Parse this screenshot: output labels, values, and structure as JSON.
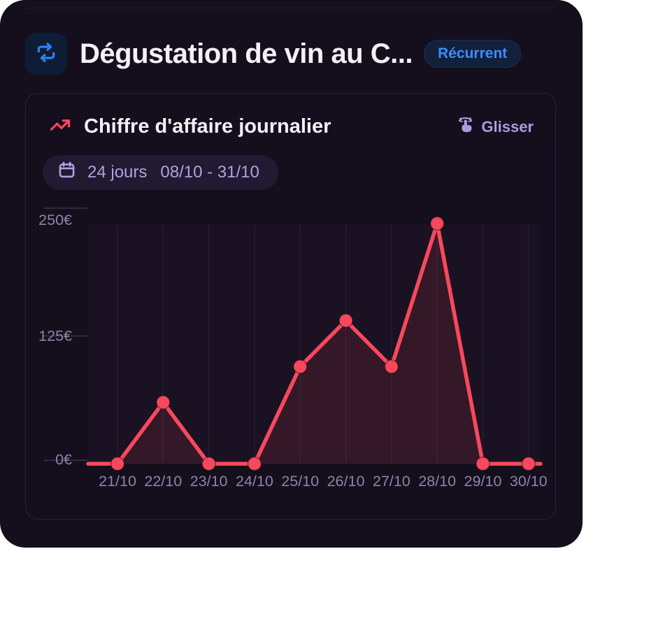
{
  "header": {
    "title": "Dégustation de vin au C...",
    "badge": "Récurrent",
    "icons": {
      "left_button": "repeat-icon"
    }
  },
  "card": {
    "title": "Chiffre d'affaire journalier",
    "title_icon": "trending-up-icon",
    "drag_hint": "Glisser",
    "drag_icon": "swipe-hand-icon",
    "date_pill": {
      "icon": "calendar-icon",
      "duration": "24 jours",
      "range": "08/10 - 31/10"
    }
  },
  "chart_data": {
    "type": "line",
    "title": "Chiffre d'affaire journalier",
    "x_labels": [
      "21/10",
      "22/10",
      "23/10",
      "24/10",
      "25/10",
      "26/10",
      "27/10",
      "28/10",
      "29/10",
      "30/10"
    ],
    "series": [
      {
        "name": "Chiffre d'affaire journalier",
        "values": [
          0,
          60,
          0,
          0,
          95,
          140,
          95,
          235,
          0,
          0
        ]
      }
    ],
    "unit": "€",
    "ylim": [
      0,
      250
    ],
    "y_ticks": [
      {
        "value": 0,
        "label": "0€"
      },
      {
        "value": 125,
        "label": "125€"
      },
      {
        "value": 250,
        "label": "250€"
      }
    ],
    "grid": "vertical",
    "legend": "none",
    "line_color": "#f9485c",
    "fill_color": "rgba(249,72,92,0.12)",
    "point_color": "#f9485c",
    "edges_continue": true
  },
  "colors": {
    "panel_bg": "#150e1c",
    "accent_blue": "#3e8bf8",
    "accent_red": "#f9485c",
    "lavender": "#b2a0e2",
    "axis_text": "#8d84a9"
  }
}
